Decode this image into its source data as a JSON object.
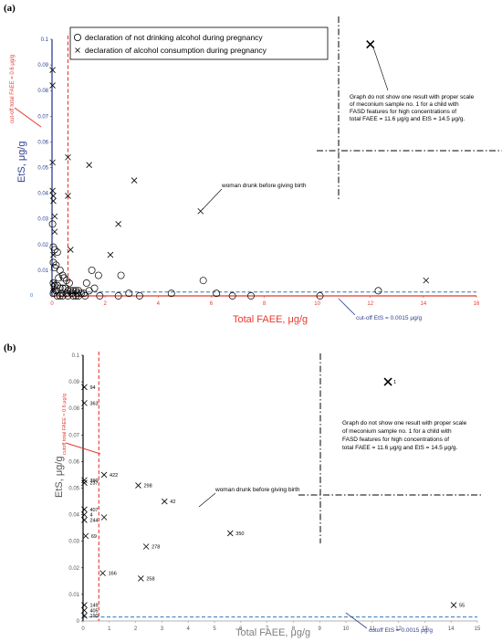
{
  "chart_data": [
    {
      "panel": "(a)",
      "type": "scatter",
      "xlabel": "Total FAEE, μg/g",
      "ylabel": "EtS, μg/g",
      "xlim": [
        0,
        16
      ],
      "ylim": [
        0,
        0.1
      ],
      "xticks": [
        0,
        2,
        4,
        6,
        8,
        10,
        12,
        14,
        16
      ],
      "yticks": [
        0,
        0.01,
        0.02,
        0.03,
        0.04,
        0.05,
        0.06,
        0.07,
        0.08,
        0.09,
        0.1
      ],
      "xtick_labels": [
        "0",
        "2",
        "4",
        "6",
        "8",
        "10",
        "12",
        "14",
        "16"
      ],
      "ytick_labels": [
        "0",
        "0.01",
        "0.02",
        "0.03",
        "0.04",
        "0.05",
        "0.06",
        "0.07",
        "0.08",
        "0.09",
        "0.1"
      ],
      "colors": {
        "x_axis": "#e8382f",
        "y_axis": "#2f3f8f",
        "x_cutoff": "#e8382f",
        "y_cutoff": "#2e75b6"
      },
      "legend": {
        "placement": "top-center",
        "entries": [
          {
            "marker": "circle",
            "label": "declaration of not drinking alcohol during pregnancy"
          },
          {
            "marker": "x",
            "label": "declaration of alcohol consumption during pregnancy"
          }
        ]
      },
      "cutoff_x": {
        "value": 0.6,
        "label": "cut-off total FAEE = 0.6 μg/g"
      },
      "cutoff_y": {
        "value": 0.0015,
        "label": "cut-off EtS = 0.0015 μg/g"
      },
      "annotations": [
        {
          "id": "woman",
          "text": "woman drunk before giving birth"
        },
        {
          "id": "outlier",
          "lines": [
            "Graph do not show one result with proper scale",
            "of meconium sample no. 1 for a child with",
            "FASD features for high concentrations of",
            "total FAEE = 11.6 μg/g and EtS = 14.5 μg/g."
          ]
        }
      ],
      "series": [
        {
          "name": "declaration of not drinking alcohol during pregnancy",
          "marker": "circle",
          "points": [
            [
              0.02,
              0.028
            ],
            [
              0.05,
              0.019
            ],
            [
              0.1,
              0.018
            ],
            [
              0.2,
              0.017
            ],
            [
              0.15,
              0.012
            ],
            [
              0.05,
              0.013
            ],
            [
              0.1,
              0.011
            ],
            [
              0.3,
              0.01
            ],
            [
              0.4,
              0.008
            ],
            [
              0.25,
              0.007
            ],
            [
              0.45,
              0.007
            ],
            [
              0.55,
              0.006
            ],
            [
              0.65,
              0.005
            ],
            [
              0.05,
              0.005
            ],
            [
              0.1,
              0.004
            ],
            [
              0.2,
              0.004
            ],
            [
              0.3,
              0.003
            ],
            [
              0.4,
              0.003
            ],
            [
              0.5,
              0.003
            ],
            [
              0.6,
              0.002
            ],
            [
              0.7,
              0.002
            ],
            [
              0.8,
              0.002
            ],
            [
              0.9,
              0.002
            ],
            [
              1.0,
              0.002
            ],
            [
              0.15,
              0.002
            ],
            [
              0.35,
              0.001
            ],
            [
              0.55,
              0.001
            ],
            [
              0.75,
              0.001
            ],
            [
              0.95,
              0.001
            ],
            [
              1.1,
              0.001
            ],
            [
              1.2,
              0.001
            ],
            [
              0.05,
              0.001
            ],
            [
              0.2,
              0.0
            ],
            [
              0.4,
              0.0
            ],
            [
              0.6,
              0.0
            ],
            [
              0.8,
              0.0
            ],
            [
              1.0,
              0.0
            ],
            [
              1.25,
              0.0
            ],
            [
              0.3,
              0.0
            ],
            [
              0.9,
              0.0
            ],
            [
              1.5,
              0.01
            ],
            [
              1.75,
              0.008
            ],
            [
              1.6,
              0.003
            ],
            [
              2.6,
              0.008
            ],
            [
              1.3,
              0.005
            ],
            [
              1.4,
              0.002
            ],
            [
              1.8,
              0.0
            ],
            [
              2.5,
              0.0
            ],
            [
              2.9,
              0.001
            ],
            [
              3.3,
              0.0
            ],
            [
              4.5,
              0.001
            ],
            [
              5.7,
              0.006
            ],
            [
              6.2,
              0.001
            ],
            [
              6.8,
              0.0
            ],
            [
              7.5,
              0.0
            ],
            [
              10.1,
              0.0
            ],
            [
              12.3,
              0.002
            ]
          ]
        },
        {
          "name": "declaration of alcohol consumption during pregnancy",
          "marker": "x",
          "points": [
            [
              0.02,
              0.088
            ],
            [
              0.02,
              0.082
            ],
            [
              0.02,
              0.052
            ],
            [
              0.02,
              0.041
            ],
            [
              0.05,
              0.039
            ],
            [
              0.05,
              0.037
            ],
            [
              0.1,
              0.031
            ],
            [
              0.1,
              0.025
            ],
            [
              0.05,
              0.016
            ],
            [
              0.05,
              0.005
            ],
            [
              0.05,
              0.003
            ],
            [
              0.05,
              0.002
            ],
            [
              0.6,
              0.054
            ],
            [
              0.6,
              0.039
            ],
            [
              0.7,
              0.018
            ],
            [
              1.4,
              0.051
            ],
            [
              3.1,
              0.045
            ],
            [
              2.5,
              0.028
            ],
            [
              2.2,
              0.016
            ],
            [
              5.6,
              0.033
            ],
            [
              14.1,
              0.006
            ],
            [
              12.0,
              0.098
            ]
          ]
        }
      ]
    },
    {
      "panel": "(b)",
      "type": "scatter",
      "xlabel": "Total FAEE, μg/g",
      "ylabel": "EtS, μg/g",
      "xlim": [
        0,
        15
      ],
      "ylim": [
        0,
        0.1
      ],
      "xticks": [
        0,
        1,
        2,
        3,
        4,
        5,
        6,
        7,
        8,
        9,
        10,
        11,
        12,
        13,
        14,
        15
      ],
      "yticks": [
        0,
        0.01,
        0.02,
        0.03,
        0.04,
        0.05,
        0.06,
        0.07,
        0.08,
        0.09,
        0.1
      ],
      "xtick_labels": [
        "0",
        "1",
        "2",
        "3",
        "4",
        "5",
        "6",
        "7",
        "8",
        "9",
        "10",
        "11",
        "12",
        "13",
        "14",
        "15"
      ],
      "ytick_labels": [
        "0",
        "0.01",
        "0.02",
        "0.03",
        "0.04",
        "0.05",
        "0.06",
        "0.07",
        "0.08",
        "0.09",
        "0.1"
      ],
      "colors": {
        "x_cutoff": "#e8382f",
        "y_cutoff": "#2e75b6"
      },
      "cutoff_x": {
        "value": 0.6,
        "label": "cutoff total FAEE = 0.6 μg/g"
      },
      "cutoff_y": {
        "value": 0.0015,
        "label": "cutoff EtS = 0.0015 μg/g"
      },
      "annotations": [
        {
          "id": "woman",
          "text": "woman drunk before giving birth"
        },
        {
          "id": "outlier",
          "lines": [
            "Graph do not show one result with proper scale",
            "of meconium sample no. 1 for a child with",
            "FASD features for high concentrations of",
            "total FAEE = 11.6 μg/g and EtS = 14.5 μg/g."
          ]
        }
      ],
      "series": [
        {
          "name": "declaration of alcohol consumption during pregnancy",
          "marker": "x",
          "points": [
            {
              "x": 0.05,
              "y": 0.088,
              "label": "94"
            },
            {
              "x": 0.05,
              "y": 0.082,
              "label": "363"
            },
            {
              "x": 0.05,
              "y": 0.053,
              "label": "390"
            },
            {
              "x": 0.05,
              "y": 0.052,
              "label": "237"
            },
            {
              "x": 0.05,
              "y": 0.042,
              "label": "407"
            },
            {
              "x": 0.05,
              "y": 0.04,
              "label": "4"
            },
            {
              "x": 0.05,
              "y": 0.038,
              "label": "244"
            },
            {
              "x": 0.1,
              "y": 0.032,
              "label": "69"
            },
            {
              "x": 0.05,
              "y": 0.006,
              "label": "149"
            },
            {
              "x": 0.05,
              "y": 0.004,
              "label": "405"
            },
            {
              "x": 0.05,
              "y": 0.002,
              "label": "190"
            },
            {
              "x": 0.8,
              "y": 0.055,
              "label": "422"
            },
            {
              "x": 0.8,
              "y": 0.039,
              "label": ""
            },
            {
              "x": 0.75,
              "y": 0.018,
              "label": "166"
            },
            {
              "x": 2.1,
              "y": 0.051,
              "label": "298"
            },
            {
              "x": 3.1,
              "y": 0.045,
              "label": "42"
            },
            {
              "x": 2.4,
              "y": 0.028,
              "label": "278"
            },
            {
              "x": 2.2,
              "y": 0.016,
              "label": "258"
            },
            {
              "x": 5.6,
              "y": 0.033,
              "label": "350"
            },
            {
              "x": 14.1,
              "y": 0.006,
              "label": "55"
            },
            {
              "x": 11.6,
              "y": 0.09,
              "label": "1"
            }
          ]
        }
      ]
    }
  ]
}
